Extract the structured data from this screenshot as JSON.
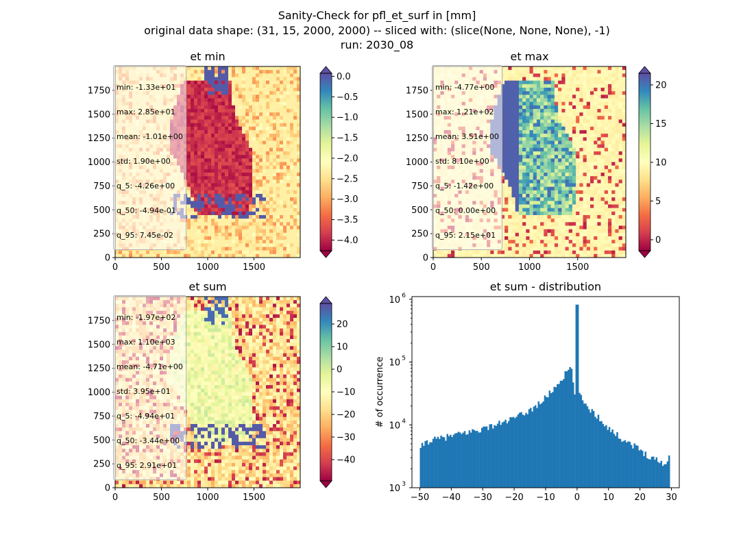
{
  "figure": {
    "title_lines": [
      "Sanity-Check for pfl_et_surf in [mm]",
      "original data shape: (31, 15, 2000, 2000) -- sliced with: (slice(None, None, None), -1)",
      "run: 2030_08"
    ]
  },
  "chart_data": [
    {
      "type": "heatmap",
      "title": "et min",
      "xlim": [
        0,
        2000
      ],
      "ylim": [
        0,
        2000
      ],
      "xticks": [
        "0",
        "500",
        "1000",
        "1500"
      ],
      "yticks": [
        "0",
        "250",
        "500",
        "750",
        "1000",
        "1250",
        "1500",
        "1750"
      ],
      "colormap": "Spectral",
      "colorbar": {
        "vmin": -4.26,
        "vmax": 0.0745,
        "extend": "both",
        "ticks": [
          "0.0",
          "−0.5",
          "−1.0",
          "−1.5",
          "−2.0",
          "−2.5",
          "−3.0",
          "−3.5",
          "−4.0"
        ],
        "tick_values": [
          0,
          -0.5,
          -1,
          -1.5,
          -2,
          -2.5,
          -3,
          -3.5,
          -4
        ]
      },
      "stats": [
        "min: -1.33e+01",
        "max: 2.85e+01",
        "mean: -1.01e+00",
        "std: 1.90e+00",
        "q_5: -4.26e+00",
        "q_50: -4.94e-01",
        "q_95: 7.45e-02"
      ]
    },
    {
      "type": "heatmap",
      "title": "et max",
      "xlim": [
        0,
        2000
      ],
      "ylim": [
        0,
        2000
      ],
      "xticks": [
        "0",
        "500",
        "1000",
        "1500"
      ],
      "yticks": [
        "0",
        "250",
        "500",
        "750",
        "1000",
        "1250",
        "1500",
        "1750"
      ],
      "colormap": "Spectral",
      "colorbar": {
        "vmin": -1.42,
        "vmax": 21.5,
        "extend": "both",
        "ticks": [
          "0",
          "5",
          "10",
          "15",
          "20"
        ],
        "tick_values": [
          0,
          5,
          10,
          15,
          20
        ]
      },
      "stats": [
        "min: -4.77e+00",
        "max: 1.21e+02",
        "mean: 3.51e+00",
        "std: 8.10e+00",
        "q_5: -1.42e+00",
        "q_50: 0.00e+00",
        "q_95: 2.15e+01"
      ]
    },
    {
      "type": "heatmap",
      "title": "et sum",
      "xlim": [
        0,
        2000
      ],
      "ylim": [
        0,
        2000
      ],
      "xticks": [
        "0",
        "500",
        "1000",
        "1500"
      ],
      "yticks": [
        "0",
        "250",
        "500",
        "750",
        "1000",
        "1250",
        "1500",
        "1750"
      ],
      "colormap": "Spectral",
      "colorbar": {
        "vmin": -49.4,
        "vmax": 29.1,
        "extend": "both",
        "ticks": [
          "20",
          "10",
          "0",
          "−10",
          "−20",
          "−30",
          "−40"
        ],
        "tick_values": [
          20,
          10,
          0,
          -10,
          -20,
          -30,
          -40
        ]
      },
      "stats": [
        "min: -1.97e+02",
        "max: 1.10e+03",
        "mean: -4.71e+00",
        "std: 3.95e+01",
        "q_5: -4.94e+01",
        "q_50: -3.44e+00",
        "q_95: 2.91e+01"
      ]
    },
    {
      "type": "bar",
      "title": "et sum - distribution",
      "ylabel": "# of occurrence",
      "yscale": "log",
      "xlim": [
        -52.5,
        32.5
      ],
      "ylim": [
        1000,
        1100000
      ],
      "xticks": [
        -50,
        -40,
        -30,
        -20,
        -10,
        0,
        10,
        20,
        30
      ],
      "xtick_labels": [
        "−50",
        "−40",
        "−30",
        "−20",
        "−10",
        "0",
        "10",
        "20",
        "30"
      ],
      "yticks": [
        1000,
        10000,
        100000,
        1000000
      ],
      "ytick_labels": [
        "10",
        "10",
        "10",
        "10"
      ],
      "ytick_exponents": [
        "3",
        "4",
        "5",
        "6"
      ],
      "color": "#1f77b4",
      "bin_width": 0.5,
      "profile": {
        "x": [
          -49.5,
          -48,
          -46,
          -44,
          -42,
          -40,
          -38,
          -36,
          -34,
          -32,
          -30,
          -28,
          -26,
          -24,
          -22,
          -20,
          -18,
          -16,
          -14,
          -12,
          -10,
          -9,
          -8,
          -7,
          -6,
          -5,
          -4,
          -3,
          -2,
          -1.5,
          -1,
          -0.5,
          0,
          0.5,
          1,
          2,
          3,
          4,
          6,
          8,
          10,
          12,
          14,
          16,
          18,
          20,
          22,
          24,
          26,
          28,
          29,
          29.5
        ],
        "y": [
          4500,
          5400,
          5700,
          6000,
          6300,
          6700,
          7000,
          7400,
          7800,
          8200,
          8700,
          9300,
          10000,
          10800,
          11700,
          12800,
          14200,
          16000,
          18500,
          22000,
          27000,
          31000,
          35000,
          40000,
          46000,
          53000,
          62000,
          72000,
          85000,
          60000,
          38000,
          20000,
          820000,
          35000,
          28000,
          24000,
          21000,
          18000,
          14500,
          11500,
          9000,
          7300,
          6200,
          5400,
          4700,
          4000,
          3400,
          3000,
          2700,
          2300,
          2600,
          4000
        ]
      }
    }
  ]
}
